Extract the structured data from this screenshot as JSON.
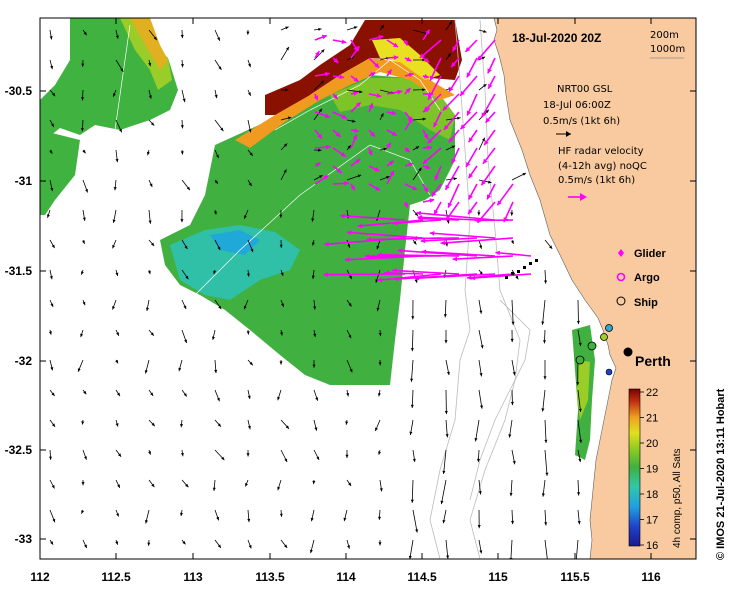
{
  "map": {
    "date_label": "18-Jul-2020 20Z",
    "isobath_labels": [
      "200m",
      "1000m"
    ],
    "lon_ticks": [
      "112",
      "112.5",
      "113",
      "113.5",
      "114",
      "114.5",
      "115",
      "115.5",
      "116"
    ],
    "lat_ticks": [
      "-30.5",
      "-31",
      "-31.5",
      "-32",
      "-32.5",
      "-33"
    ],
    "city_label": "Perth",
    "footer": "© IMOS 21-Jul-2020 13:11 Hobart"
  },
  "legend": {
    "model_lines": [
      "NRT00 GSL",
      "18-Jul 06:00Z",
      "0.5m/s (1kt 6h)"
    ],
    "radar_lines": [
      "HF radar velocity",
      "(4-12h avg) noQC",
      "0.5m/s (1kt 6h)"
    ],
    "glider_label": "Glider",
    "argo_label": "Argo",
    "ship_label": "Ship"
  },
  "colorbar": {
    "ticks": [
      "22",
      "21",
      "20",
      "19",
      "18",
      "17",
      "16"
    ],
    "caption": "4h comp, p50, All Sats"
  },
  "colors": {
    "land": "#f9caa0",
    "model_arrow": "#000000",
    "radar_arrow": "#ff00ff",
    "isobath": "#bbbbbb"
  }
}
